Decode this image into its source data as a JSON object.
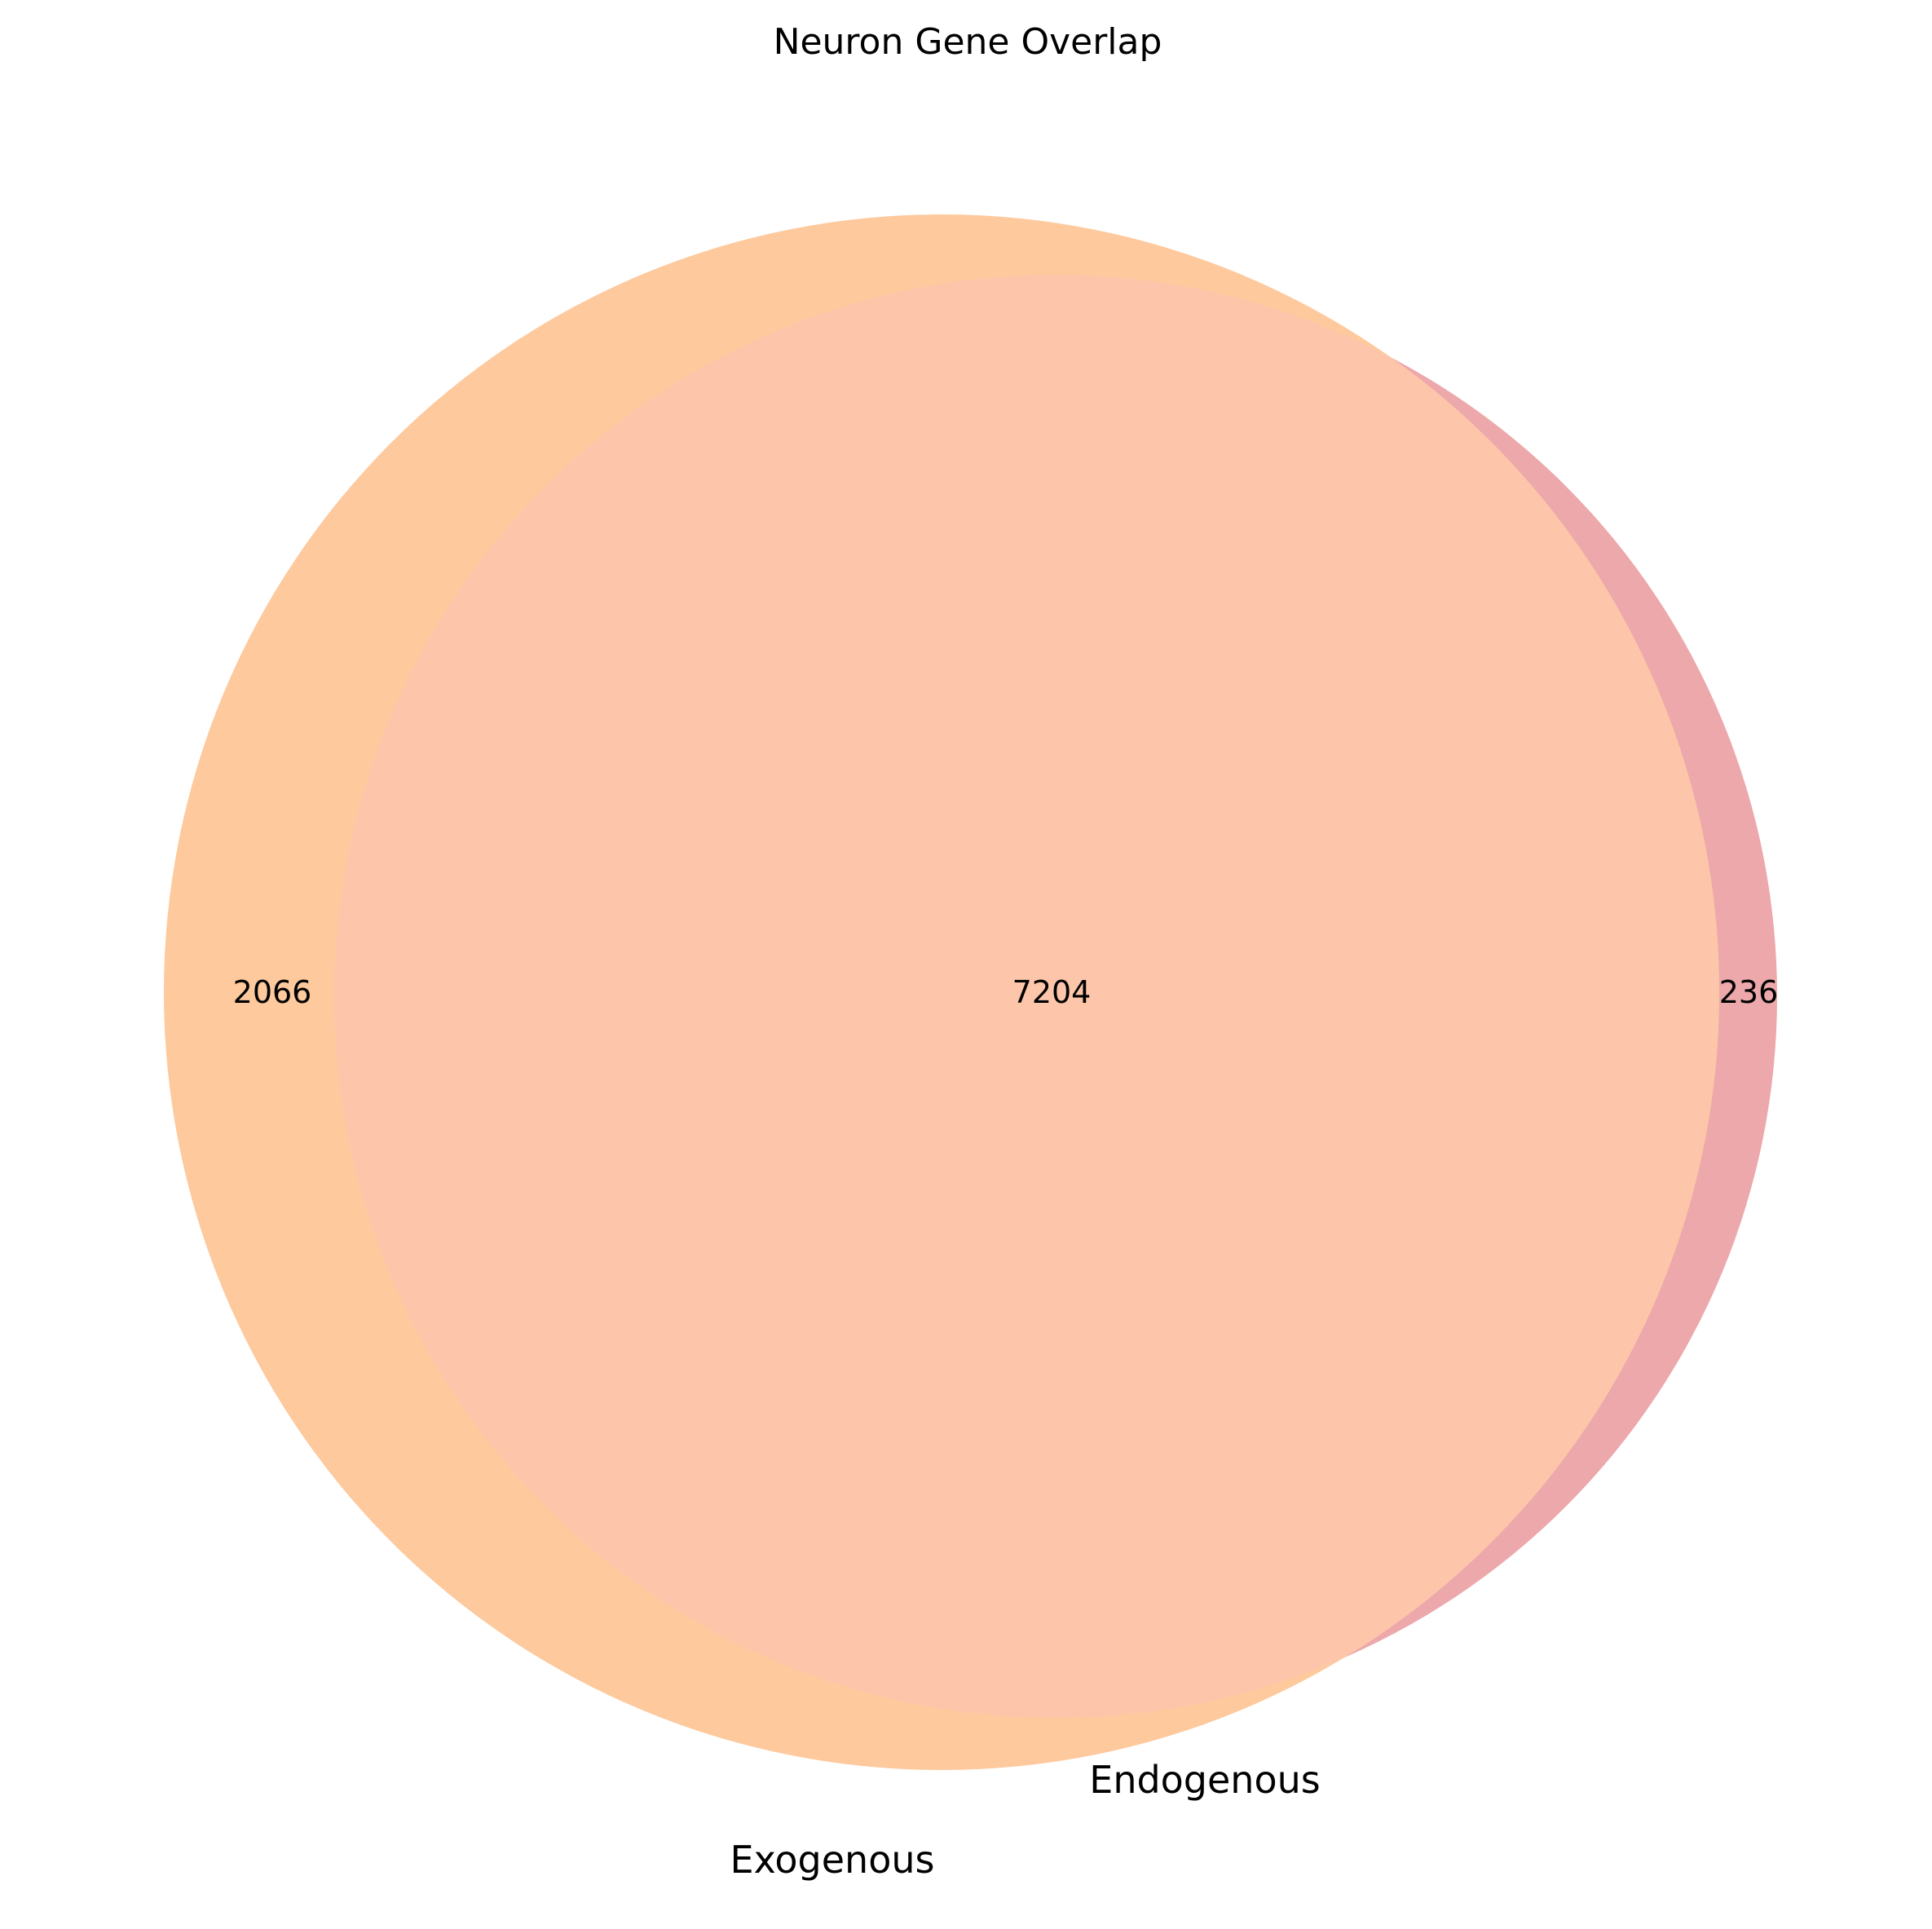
{
  "chart_data": {
    "type": "venn",
    "title": "Neuron Gene Overlap",
    "sets": [
      {
        "name": "Exogenous",
        "only_count": "2066",
        "color": "#fdc99d"
      },
      {
        "name": "Endogenous",
        "only_count": "236",
        "color": "#eca8ab"
      }
    ],
    "intersection": {
      "count": "7204",
      "color": "#fdc6aa"
    }
  }
}
